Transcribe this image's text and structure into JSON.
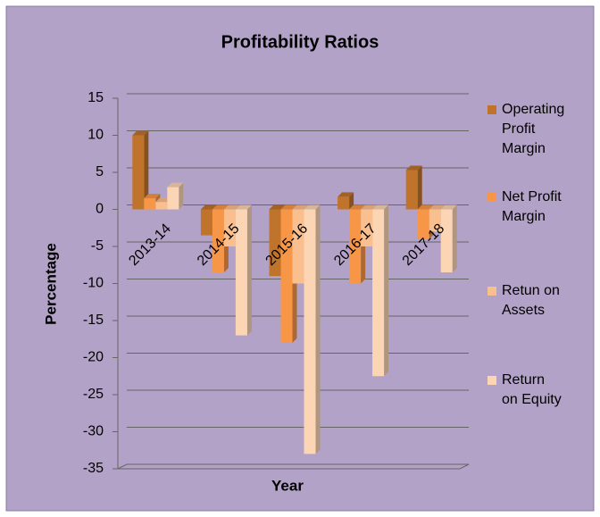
{
  "chart_data": {
    "type": "bar",
    "title": "Profitability Ratios",
    "x_label": "Year",
    "y_label": "Percentage",
    "categories": [
      "2013-14",
      "2014-15",
      "2015-16",
      "2016-17",
      "2017-18"
    ],
    "series": [
      {
        "name": "Operating Profit Margin",
        "color": "#c0732b",
        "values": [
          10,
          -3.5,
          -9,
          1.7,
          5.3
        ]
      },
      {
        "name": "Net Profit Margin",
        "color": "#f79646",
        "values": [
          1.5,
          -8.5,
          -18,
          -10,
          -4
        ]
      },
      {
        "name": "Retun on Assets",
        "color": "#fabf8f",
        "values": [
          1,
          -5,
          -10,
          -5,
          -3
        ]
      },
      {
        "name": "Return on Equity",
        "color": "#fcd5b5",
        "values": [
          3,
          -17,
          -33,
          -22.5,
          -8.5
        ]
      }
    ],
    "ylim": [
      -35,
      15
    ],
    "yticks": [
      -35,
      -30,
      -25,
      -20,
      -15,
      -10,
      -5,
      0,
      5,
      10,
      15
    ],
    "grid": true,
    "legend": "right"
  }
}
